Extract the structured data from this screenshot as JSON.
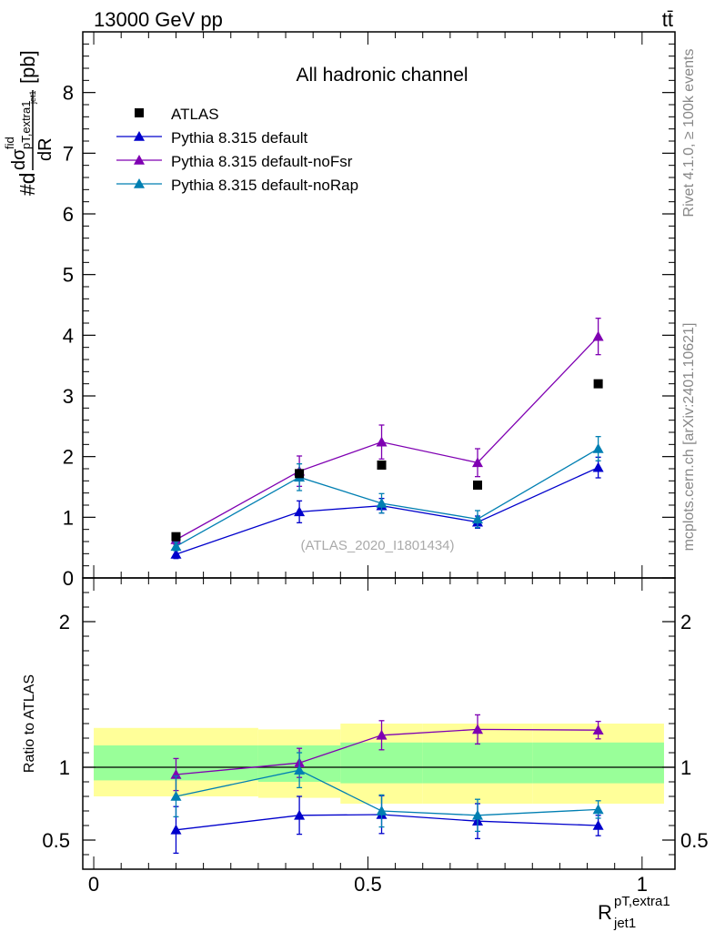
{
  "header": {
    "energy_label": "13000 GeV pp",
    "process_label": "tt̄"
  },
  "side_text": {
    "rivet": "Rivet 4.1.0, ≥ 100k events",
    "mcplots": "mcplots.cern.ch [arXiv:2401.10621]"
  },
  "chart_data": {
    "type": "scatter",
    "title": "All hadronic channel",
    "watermark": "(ATLAS_2020_I1801434)",
    "xlabel": "R",
    "xlabel_sup": "pT,extra1",
    "xlabel_sub": "jet1",
    "ylabel_main": "#d",
    "ylabel_frac_num": "dσ",
    "ylabel_num_sup": "fid",
    "ylabel_num_sub": "pT,extra1",
    "ylabel_num_subsub": "jet1",
    "ylabel_frac_den": "dR",
    "ylabel_unit": "[pb]",
    "ratio_ylabel": "Ratio to ATLAS",
    "xlim": [
      -0.02,
      1.06
    ],
    "ylim": [
      0,
      9
    ],
    "ratio_ylim": [
      0.3,
      2.3
    ],
    "xticks": [
      0,
      0.5,
      1
    ],
    "xtick_labels": [
      "0",
      "0.5",
      "1"
    ],
    "yticks": [
      0,
      1,
      2,
      3,
      4,
      5,
      6,
      7,
      8
    ],
    "ytick_labels": [
      "0",
      "1",
      "2",
      "3",
      "4",
      "5",
      "6",
      "7",
      "8"
    ],
    "ratio_yticks": [
      0.5,
      1,
      2
    ],
    "ratio_ytick_labels": [
      "0.5",
      "1",
      "2"
    ],
    "bin_edges": [
      0,
      0.3,
      0.45,
      0.6,
      0.8,
      1.04
    ],
    "bands": {
      "yellow": [
        [
          0.8,
          1.27
        ],
        [
          0.79,
          1.26
        ],
        [
          0.75,
          1.3
        ],
        [
          0.75,
          1.3
        ],
        [
          0.75,
          1.3
        ]
      ],
      "green": [
        [
          0.91,
          1.15
        ],
        [
          0.9,
          1.15
        ],
        [
          0.89,
          1.17
        ],
        [
          0.89,
          1.17
        ],
        [
          0.89,
          1.17
        ]
      ]
    },
    "data": {
      "name": "ATLAS",
      "x": [
        0.15,
        0.375,
        0.525,
        0.7,
        0.92
      ],
      "y": [
        0.68,
        1.72,
        1.86,
        1.53,
        3.2
      ]
    },
    "series": [
      {
        "name": "Pythia 8.315 default",
        "color": "#0000cc",
        "x": [
          0.15,
          0.375,
          0.525,
          0.7,
          0.92
        ],
        "y": [
          0.39,
          1.09,
          1.19,
          0.92,
          1.82
        ],
        "err": [
          0.07,
          0.18,
          0.12,
          0.1,
          0.17
        ],
        "ratio": [
          0.57,
          0.67,
          0.675,
          0.63,
          0.6
        ],
        "ratio_err": [
          0.16,
          0.13,
          0.13,
          0.12,
          0.07
        ]
      },
      {
        "name": "Pythia 8.315 default-noFsr",
        "color": "#7f00b2",
        "x": [
          0.15,
          0.375,
          0.525,
          0.7,
          0.92
        ],
        "y": [
          0.63,
          1.76,
          2.24,
          1.9,
          3.98
        ],
        "err": [
          0.08,
          0.25,
          0.28,
          0.23,
          0.3
        ],
        "ratio": [
          0.95,
          1.03,
          1.22,
          1.26,
          1.255
        ],
        "ratio_err": [
          0.11,
          0.1,
          0.1,
          0.1,
          0.06
        ]
      },
      {
        "name": "Pythia 8.315 default-noRap",
        "color": "#007fb2",
        "x": [
          0.15,
          0.375,
          0.525,
          0.7,
          0.92
        ],
        "y": [
          0.52,
          1.66,
          1.23,
          0.97,
          2.13
        ],
        "err": [
          0.07,
          0.22,
          0.16,
          0.14,
          0.2
        ],
        "ratio": [
          0.8,
          0.98,
          0.7,
          0.67,
          0.71
        ],
        "ratio_err": [
          0.14,
          0.12,
          0.11,
          0.11,
          0.06
        ]
      }
    ],
    "legend": [
      "ATLAS",
      "Pythia 8.315 default",
      "Pythia 8.315 default-noFsr",
      "Pythia 8.315 default-noRap"
    ],
    "legend_position": "top-left",
    "grid": false
  }
}
